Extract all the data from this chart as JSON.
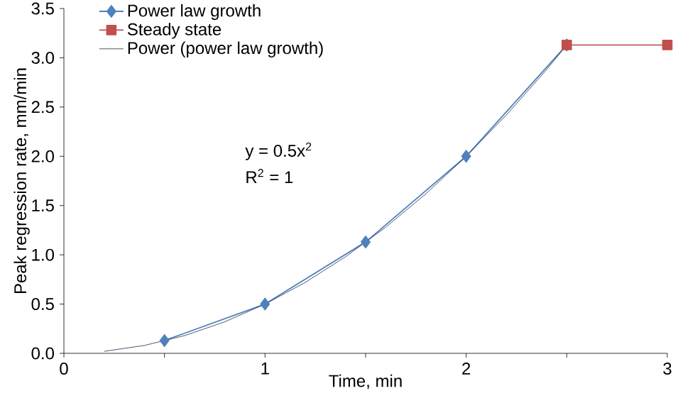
{
  "chart_data": {
    "type": "line",
    "xlabel": "Time, min",
    "ylabel": "Peak regression rate, mm/min",
    "xlim": [
      0,
      3
    ],
    "xticks": [
      0,
      {
        "value": 0.5,
        "label": null
      },
      1,
      {
        "value": 1.5,
        "label": null
      },
      2,
      {
        "value": 2.5,
        "label": null
      },
      3
    ],
    "ylim": [
      0,
      3.5
    ],
    "yticks": [
      {
        "value": 0,
        "label": "0.0"
      },
      0.5,
      {
        "value": 1,
        "label": "1.0"
      },
      1.5,
      {
        "value": 2,
        "label": "2.0"
      },
      2.5,
      {
        "value": 3,
        "label": "3.0"
      },
      3.5
    ],
    "grid": false,
    "legend": "top left",
    "annotations": [
      "y = 0.5x$^{2}$",
      "R$^{2}$ = 1"
    ],
    "series": [
      {
        "name": "Power law growth",
        "color": "#4f81bd",
        "marker": "diamond",
        "line_style": "solid",
        "x": [
          0.5,
          1,
          1.5,
          2,
          2.5
        ],
        "values": [
          0.13,
          0.5,
          1.13,
          2.0,
          3.13
        ]
      },
      {
        "name": "Steady state",
        "color": "#c0504d",
        "marker": "square",
        "line_style": "solid",
        "x": [
          2.5,
          3
        ],
        "values": [
          3.13,
          3.13
        ]
      },
      {
        "name": "Power (power law growth)",
        "color": "#1f2d4d",
        "marker": "none",
        "line_style": "solid",
        "x": [
          0.2,
          0.3,
          0.4,
          0.5,
          0.6,
          0.7,
          0.8,
          0.9,
          1.0,
          1.1,
          1.2,
          1.3,
          1.4,
          1.5,
          1.6,
          1.7,
          1.8,
          1.9,
          2.0,
          2.1,
          2.2,
          2.3,
          2.4,
          2.5
        ],
        "values": [
          0.02,
          0.05,
          0.08,
          0.13,
          0.18,
          0.25,
          0.32,
          0.41,
          0.5,
          0.61,
          0.72,
          0.85,
          0.98,
          1.13,
          1.28,
          1.45,
          1.62,
          1.81,
          2.0,
          2.21,
          2.42,
          2.65,
          2.88,
          3.13
        ]
      }
    ]
  }
}
